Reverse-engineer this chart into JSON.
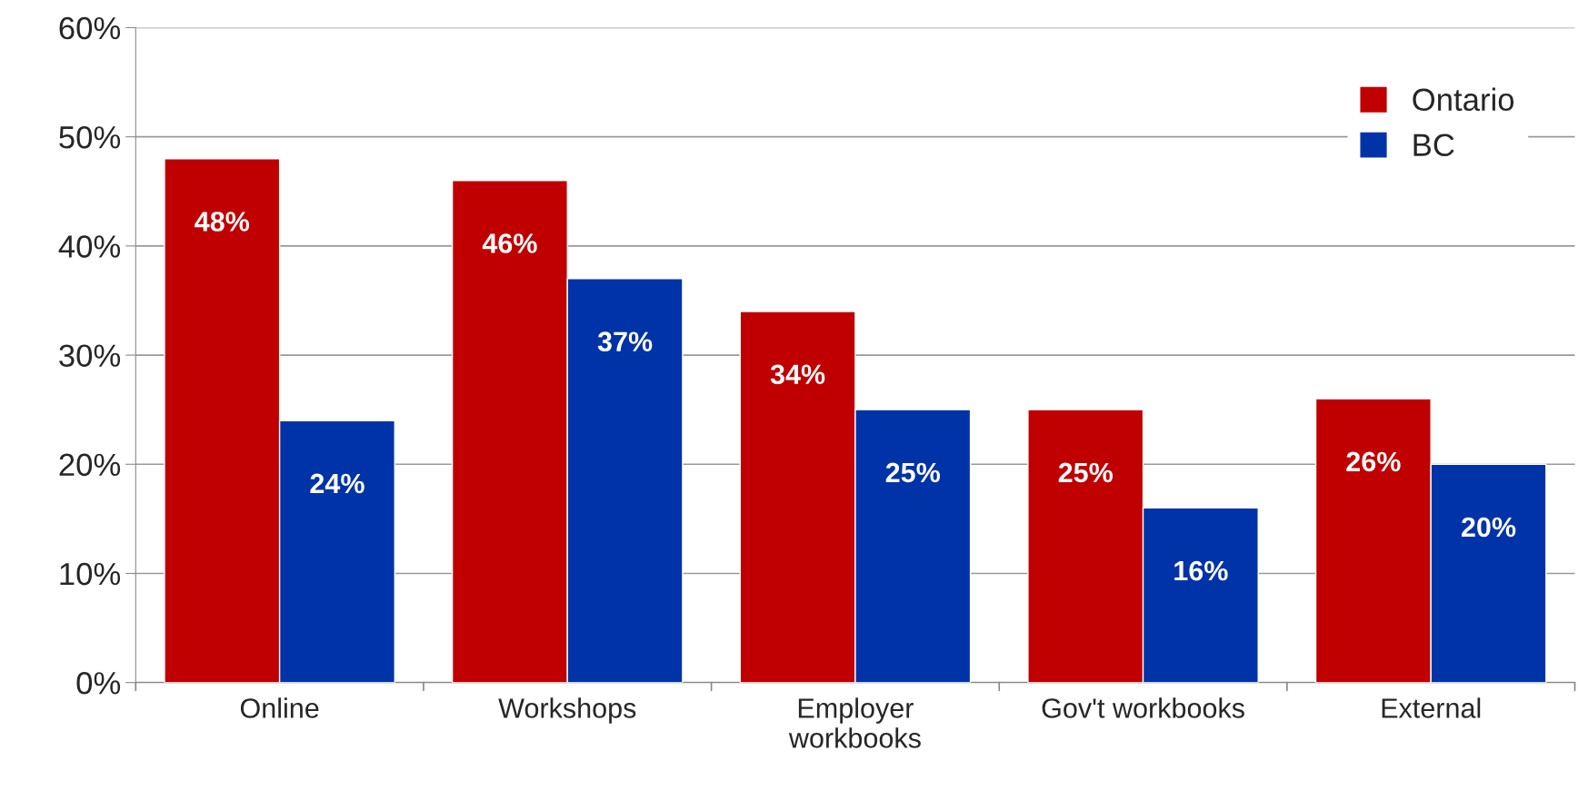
{
  "chart_data": {
    "type": "bar",
    "categories": [
      "Online",
      "Workshops",
      "Employer\nworkbooks",
      "Gov't workbooks",
      "External"
    ],
    "series": [
      {
        "name": "Ontario",
        "color": "#c00000",
        "values": [
          48,
          46,
          34,
          25,
          26
        ],
        "value_labels": [
          "48%",
          "46%",
          "34%",
          "25%",
          "26%"
        ]
      },
      {
        "name": "BC",
        "color": "#0033a8",
        "values": [
          24,
          37,
          25,
          16,
          20
        ],
        "value_labels": [
          "24%",
          "37%",
          "25%",
          "16%",
          "20%"
        ]
      }
    ],
    "ylim": [
      0,
      60
    ],
    "yticks": [
      {
        "value": 0,
        "label": "0%"
      },
      {
        "value": 10,
        "label": "10%"
      },
      {
        "value": 20,
        "label": "20%"
      },
      {
        "value": 30,
        "label": "30%"
      },
      {
        "value": 40,
        "label": "40%"
      },
      {
        "value": 50,
        "label": "50%"
      },
      {
        "value": 60,
        "label": "60%"
      }
    ],
    "grid": "y",
    "legend": "top right"
  }
}
